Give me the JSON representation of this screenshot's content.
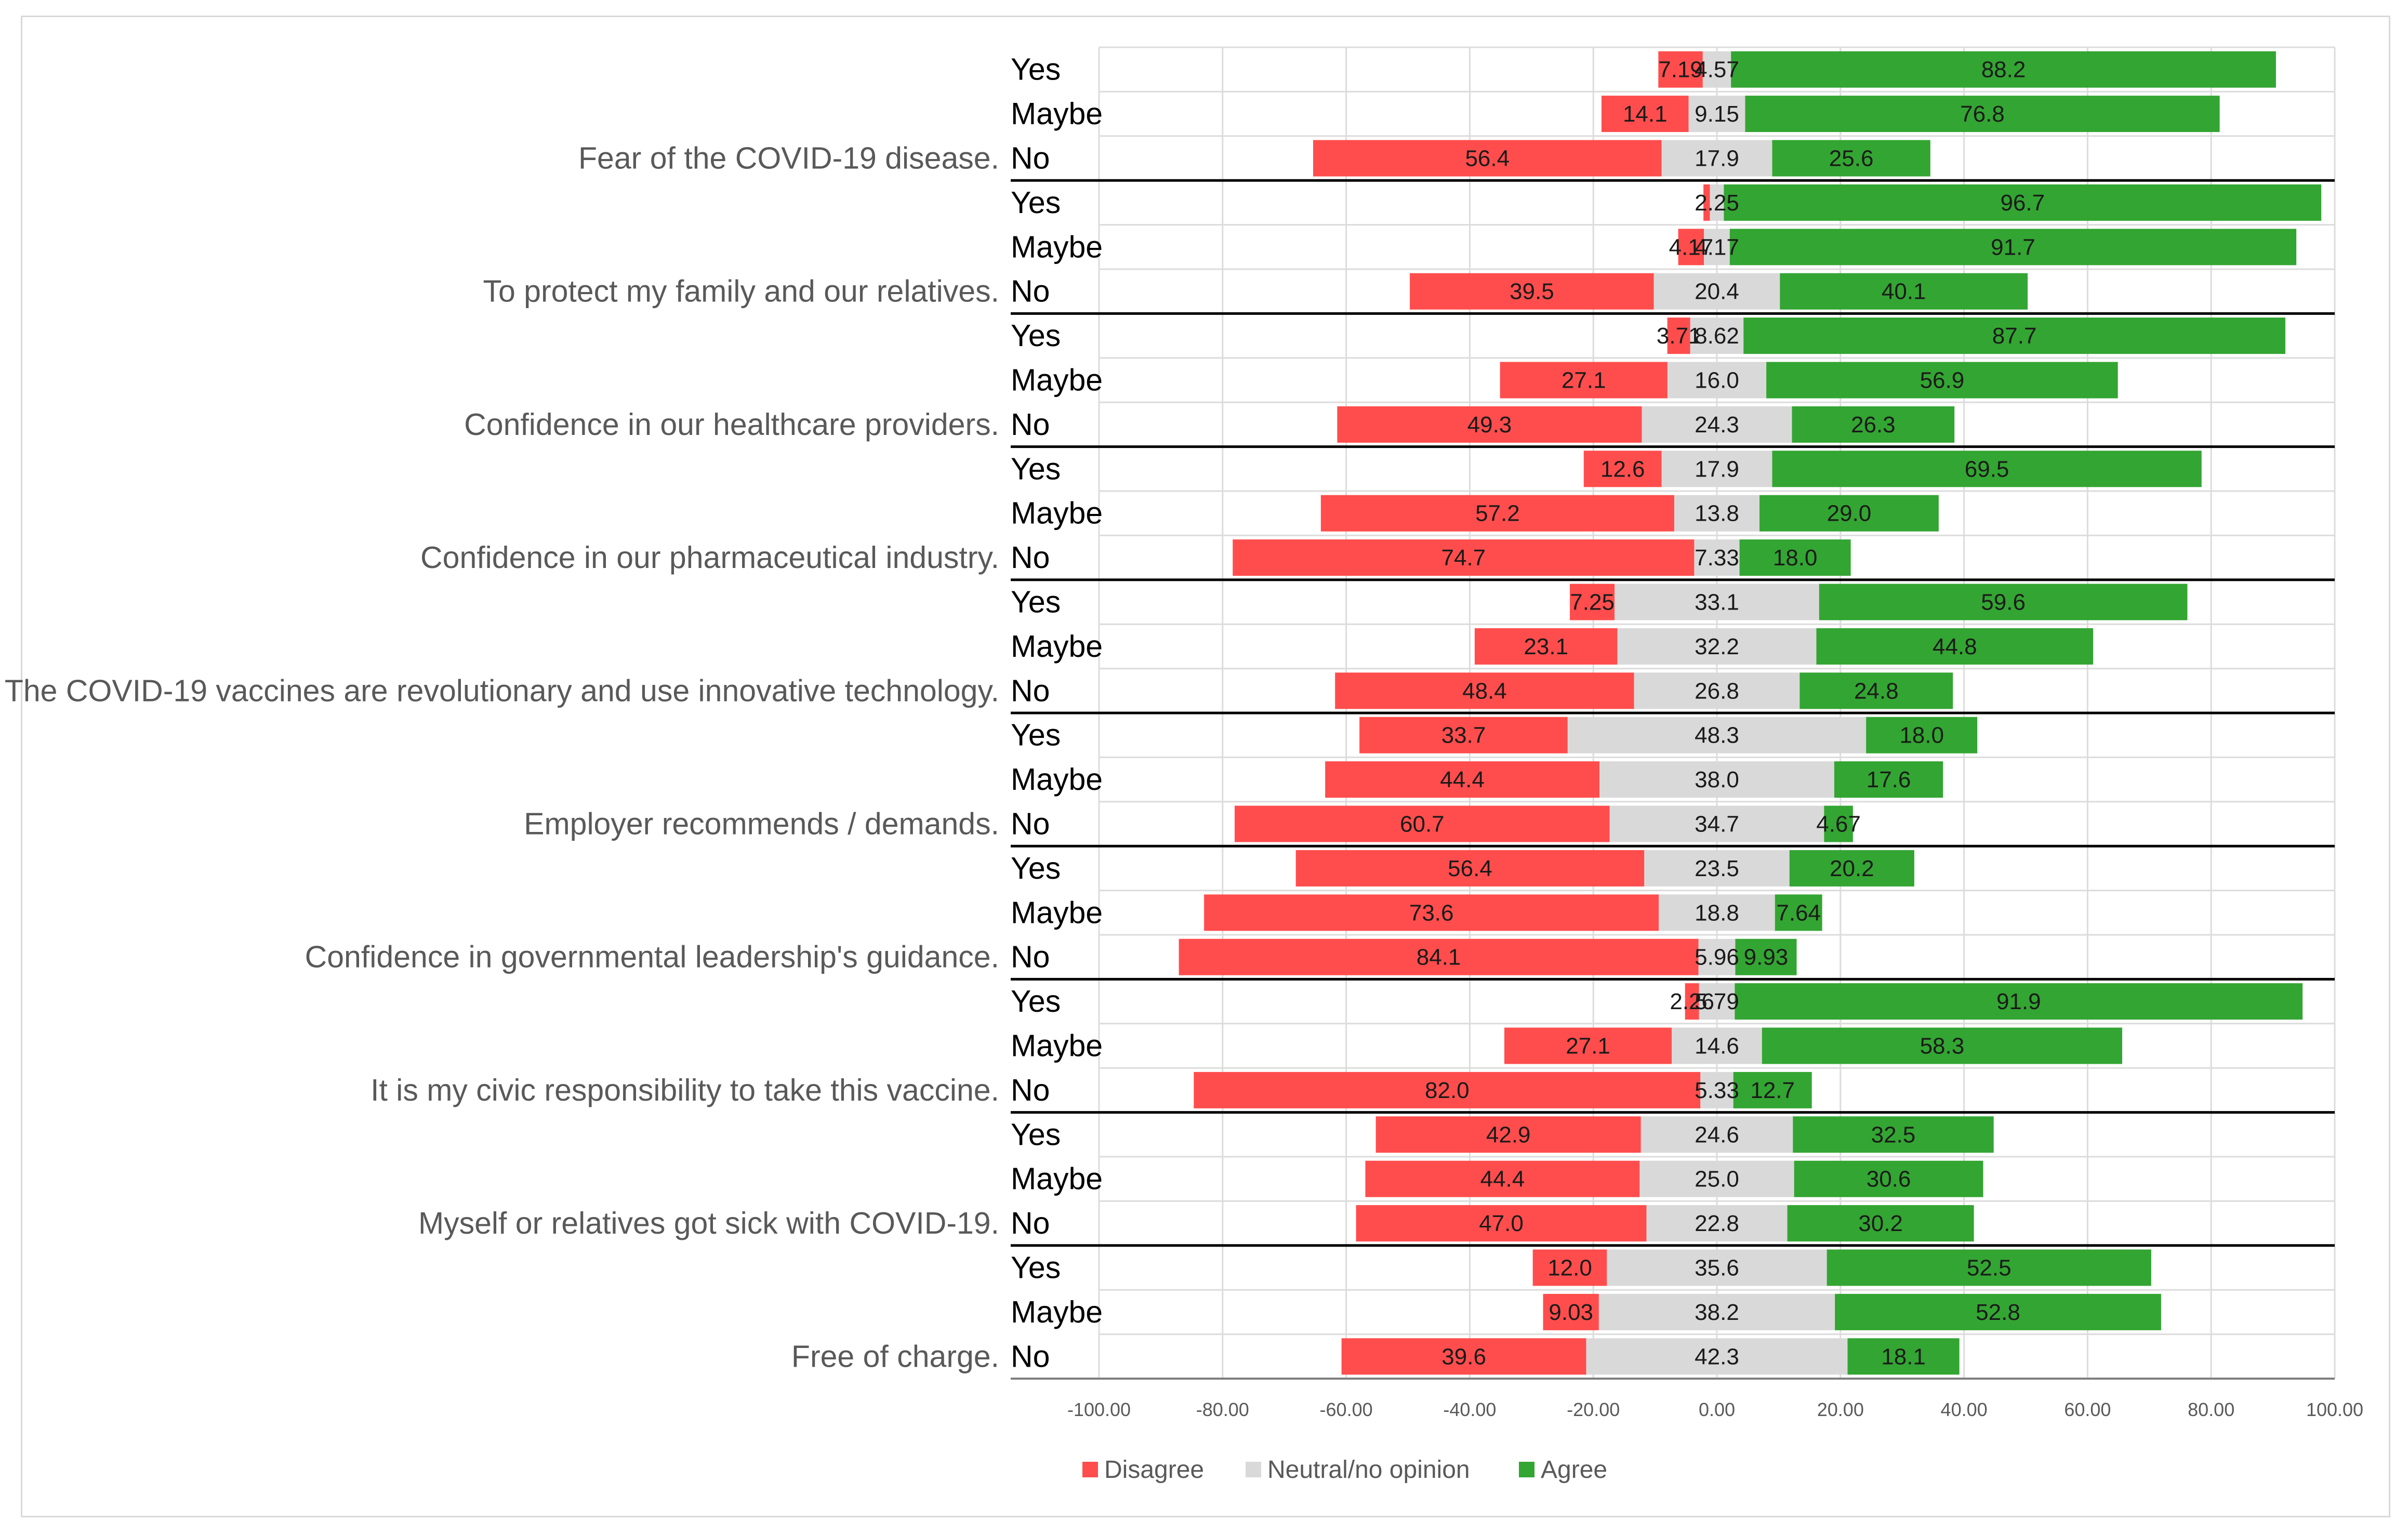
{
  "chart_data": {
    "type": "bar",
    "orientation": "horizontal",
    "stacking": "diverging",
    "xlim": [
      -100,
      100
    ],
    "x_ticks": [
      -100,
      -80,
      -60,
      -40,
      -20,
      0,
      20,
      40,
      60,
      80,
      100
    ],
    "x_tick_labels": [
      "-100.00",
      "-80.00",
      "-60.00",
      "-40.00",
      "-20.00",
      "0.00",
      "20.00",
      "40.00",
      "60.00",
      "80.00",
      "100.00"
    ],
    "grid": true,
    "legend_position": "bottom",
    "series": [
      {
        "name": "Disagree",
        "color": "#ff4d4d"
      },
      {
        "name": "Neutral/no opinion",
        "color": "#d9d9d9"
      },
      {
        "name": "Agree",
        "color": "#33a532"
      }
    ],
    "groups": [
      {
        "label": "Fear of the COVID-19 disease.",
        "rows": [
          {
            "response": "Yes",
            "disagree": 7.19,
            "neutral": 4.57,
            "agree": 88.2,
            "disagree_label": "7.19",
            "neutral_label": "4.57",
            "agree_label": "88.2"
          },
          {
            "response": "Maybe",
            "disagree": 14.1,
            "neutral": 9.15,
            "agree": 76.8,
            "disagree_label": "14.1",
            "neutral_label": "9.15",
            "agree_label": "76.8"
          },
          {
            "response": "No",
            "disagree": 56.4,
            "neutral": 17.9,
            "agree": 25.6,
            "disagree_label": "56.4",
            "neutral_label": "17.9",
            "agree_label": "25.6"
          }
        ]
      },
      {
        "label": "To protect my family and our relatives.",
        "rows": [
          {
            "response": "Yes",
            "disagree": 1.05,
            "neutral": 2.25,
            "agree": 96.7,
            "disagree_label": "",
            "neutral_label": "2.25",
            "agree_label": "96.7"
          },
          {
            "response": "Maybe",
            "disagree": 4.17,
            "neutral": 4.17,
            "agree": 91.7,
            "disagree_label": "4.17",
            "neutral_label": "4.17",
            "agree_label": "91.7"
          },
          {
            "response": "No",
            "disagree": 39.5,
            "neutral": 20.4,
            "agree": 40.1,
            "disagree_label": "39.5",
            "neutral_label": "20.4",
            "agree_label": "40.1"
          }
        ]
      },
      {
        "label": "Confidence in our healthcare providers.",
        "rows": [
          {
            "response": "Yes",
            "disagree": 3.71,
            "neutral": 8.62,
            "agree": 87.7,
            "disagree_label": "3.71",
            "neutral_label": "8.62",
            "agree_label": "87.7"
          },
          {
            "response": "Maybe",
            "disagree": 27.1,
            "neutral": 16.0,
            "agree": 56.9,
            "disagree_label": "27.1",
            "neutral_label": "16.0",
            "agree_label": "56.9"
          },
          {
            "response": "No",
            "disagree": 49.3,
            "neutral": 24.3,
            "agree": 26.3,
            "disagree_label": "49.3",
            "neutral_label": "24.3",
            "agree_label": "26.3"
          }
        ]
      },
      {
        "label": "Confidence in our pharmaceutical industry.",
        "rows": [
          {
            "response": "Yes",
            "disagree": 12.6,
            "neutral": 17.9,
            "agree": 69.5,
            "disagree_label": "12.6",
            "neutral_label": "17.9",
            "agree_label": "69.5"
          },
          {
            "response": "Maybe",
            "disagree": 57.2,
            "neutral": 13.8,
            "agree": 29.0,
            "disagree_label": "57.2",
            "neutral_label": "13.8",
            "agree_label": "29.0"
          },
          {
            "response": "No",
            "disagree": 74.7,
            "neutral": 7.33,
            "agree": 18.0,
            "disagree_label": "74.7",
            "neutral_label": "7.33",
            "agree_label": "18.0"
          }
        ]
      },
      {
        "label": "The COVID-19 vaccines are revolutionary and use innovative technology.",
        "rows": [
          {
            "response": "Yes",
            "disagree": 7.25,
            "neutral": 33.1,
            "agree": 59.6,
            "disagree_label": "7.25",
            "neutral_label": "33.1",
            "agree_label": "59.6"
          },
          {
            "response": "Maybe",
            "disagree": 23.1,
            "neutral": 32.2,
            "agree": 44.8,
            "disagree_label": "23.1",
            "neutral_label": "32.2",
            "agree_label": "44.8"
          },
          {
            "response": "No",
            "disagree": 48.4,
            "neutral": 26.8,
            "agree": 24.8,
            "disagree_label": "48.4",
            "neutral_label": "26.8",
            "agree_label": "24.8"
          }
        ]
      },
      {
        "label": "Employer recommends / demands.",
        "rows": [
          {
            "response": "Yes",
            "disagree": 33.7,
            "neutral": 48.3,
            "agree": 18.0,
            "disagree_label": "33.7",
            "neutral_label": "48.3",
            "agree_label": "18.0"
          },
          {
            "response": "Maybe",
            "disagree": 44.4,
            "neutral": 38.0,
            "agree": 17.6,
            "disagree_label": "44.4",
            "neutral_label": "38.0",
            "agree_label": "17.6"
          },
          {
            "response": "No",
            "disagree": 60.7,
            "neutral": 34.7,
            "agree": 4.67,
            "disagree_label": "60.7",
            "neutral_label": "34.7",
            "agree_label": "4.67"
          }
        ]
      },
      {
        "label": "Confidence in governmental leadership's guidance.",
        "rows": [
          {
            "response": "Yes",
            "disagree": 56.4,
            "neutral": 23.5,
            "agree": 20.2,
            "disagree_label": "56.4",
            "neutral_label": "23.5",
            "agree_label": "20.2"
          },
          {
            "response": "Maybe",
            "disagree": 73.6,
            "neutral": 18.8,
            "agree": 7.64,
            "disagree_label": "73.6",
            "neutral_label": "18.8",
            "agree_label": "7.64"
          },
          {
            "response": "No",
            "disagree": 84.1,
            "neutral": 5.96,
            "agree": 9.93,
            "disagree_label": "84.1",
            "neutral_label": "5.96",
            "agree_label": "9.93"
          }
        ]
      },
      {
        "label": "It is my civic responsibility to take this vaccine.",
        "rows": [
          {
            "response": "Yes",
            "disagree": 2.26,
            "neutral": 5.79,
            "agree": 91.9,
            "disagree_label": "2.26",
            "neutral_label": "5.79",
            "agree_label": "91.9"
          },
          {
            "response": "Maybe",
            "disagree": 27.1,
            "neutral": 14.6,
            "agree": 58.3,
            "disagree_label": "27.1",
            "neutral_label": "14.6",
            "agree_label": "58.3"
          },
          {
            "response": "No",
            "disagree": 82.0,
            "neutral": 5.33,
            "agree": 12.7,
            "disagree_label": "82.0",
            "neutral_label": "5.33",
            "agree_label": "12.7"
          }
        ]
      },
      {
        "label": "Myself or relatives got sick with COVID-19.",
        "rows": [
          {
            "response": "Yes",
            "disagree": 42.9,
            "neutral": 24.6,
            "agree": 32.5,
            "disagree_label": "42.9",
            "neutral_label": "24.6",
            "agree_label": "32.5"
          },
          {
            "response": "Maybe",
            "disagree": 44.4,
            "neutral": 25.0,
            "agree": 30.6,
            "disagree_label": "44.4",
            "neutral_label": "25.0",
            "agree_label": "30.6"
          },
          {
            "response": "No",
            "disagree": 47.0,
            "neutral": 22.8,
            "agree": 30.2,
            "disagree_label": "47.0",
            "neutral_label": "22.8",
            "agree_label": "30.2"
          }
        ]
      },
      {
        "label": "Free of charge.",
        "rows": [
          {
            "response": "Yes",
            "disagree": 12.0,
            "neutral": 35.6,
            "agree": 52.5,
            "disagree_label": "12.0",
            "neutral_label": "35.6",
            "agree_label": "52.5"
          },
          {
            "response": "Maybe",
            "disagree": 9.03,
            "neutral": 38.2,
            "agree": 52.8,
            "disagree_label": "9.03",
            "neutral_label": "38.2",
            "agree_label": "52.8"
          },
          {
            "response": "No",
            "disagree": 39.6,
            "neutral": 42.3,
            "agree": 18.1,
            "disagree_label": "39.6",
            "neutral_label": "42.3",
            "agree_label": "18.1"
          }
        ]
      }
    ]
  }
}
